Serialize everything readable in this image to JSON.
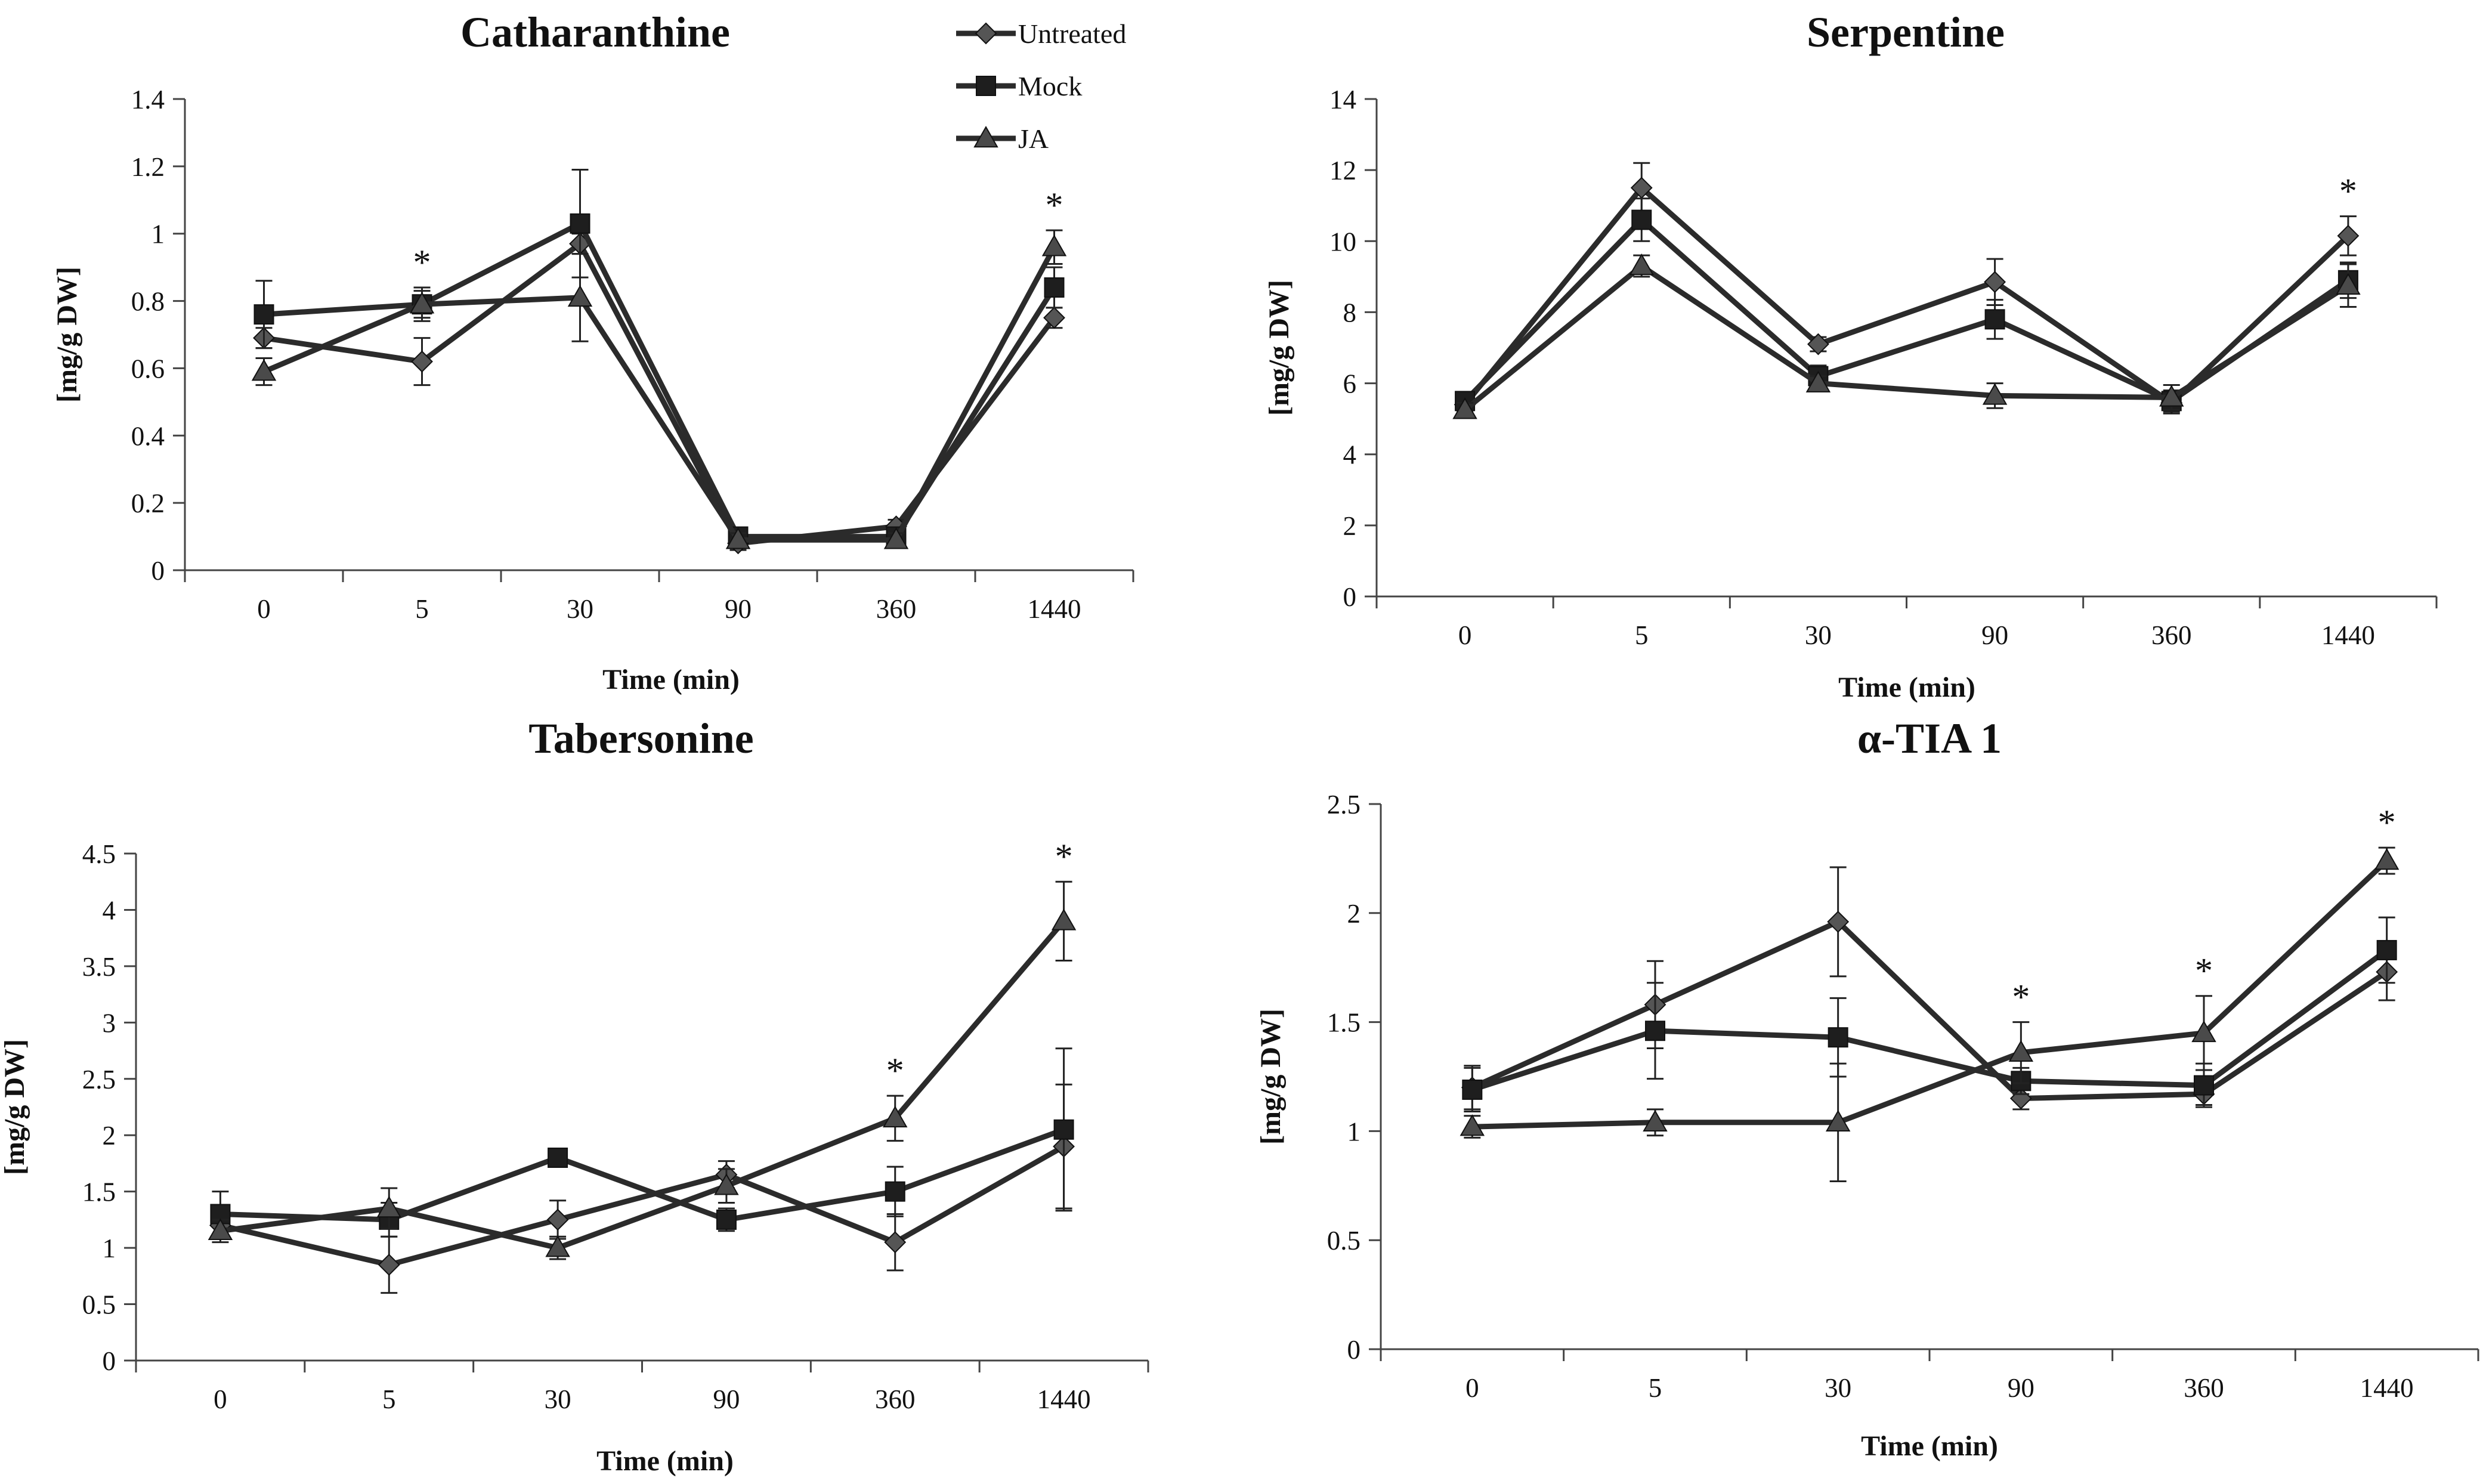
{
  "legend": [
    "Untreated",
    "Mock",
    "JA"
  ],
  "colors": {
    "ink": "#2b2b2b",
    "untreated_marker": "#555555",
    "mock_marker": "#1e1e1e",
    "ja_marker": "#4a4a4a"
  },
  "chart_data": [
    {
      "type": "line",
      "title": "Catharanthine",
      "xlabel": "Time (min)",
      "ylabel": "[mg/g DW]",
      "categories": [
        "0",
        "5",
        "30",
        "90",
        "360",
        "1440"
      ],
      "ylim": [
        0,
        1.4
      ],
      "yticks": [
        "0",
        "0.2",
        "0.4",
        "0.6",
        "0.8",
        "1",
        "1.2",
        "1.4"
      ],
      "series": [
        {
          "name": "Untreated",
          "marker": "diamond",
          "values": [
            0.69,
            0.62,
            0.97,
            0.08,
            0.13,
            0.75
          ],
          "err": [
            0.03,
            0.07,
            0.03,
            0.02,
            0.02,
            0.03
          ]
        },
        {
          "name": "Mock",
          "marker": "square",
          "values": [
            0.76,
            0.79,
            1.03,
            0.1,
            0.1,
            0.84
          ],
          "err": [
            0.1,
            0.04,
            0.16,
            0.02,
            0.02,
            0.06
          ]
        },
        {
          "name": "JA",
          "marker": "triangle",
          "values": [
            0.59,
            0.79,
            0.81,
            0.09,
            0.09,
            0.96
          ],
          "err": [
            0.04,
            0.05,
            0.13,
            0.02,
            0.02,
            0.05
          ]
        }
      ],
      "annotations": [
        {
          "category": "5",
          "text": "*"
        },
        {
          "category": "1440",
          "text": "*"
        }
      ]
    },
    {
      "type": "line",
      "title": "Serpentine",
      "xlabel": "Time (min)",
      "ylabel": "[mg/g DW]",
      "categories": [
        "0",
        "5",
        "30",
        "90",
        "360",
        "1440"
      ],
      "ylim": [
        0,
        14
      ],
      "yticks": [
        "0",
        "2",
        "4",
        "6",
        "8",
        "10",
        "12",
        "14"
      ],
      "series": [
        {
          "name": "Untreated",
          "marker": "diamond",
          "values": [
            5.4,
            11.5,
            7.1,
            8.85,
            5.45,
            10.15
          ],
          "err": [
            0.2,
            0.7,
            0.2,
            0.65,
            0.3,
            0.55
          ]
        },
        {
          "name": "Mock",
          "marker": "square",
          "values": [
            5.5,
            10.6,
            6.2,
            7.8,
            5.5,
            8.9
          ],
          "err": [
            0.2,
            0.6,
            0.3,
            0.55,
            0.3,
            0.5
          ]
        },
        {
          "name": "JA",
          "marker": "triangle",
          "values": [
            5.25,
            9.3,
            6.0,
            5.65,
            5.6,
            8.75
          ],
          "err": [
            0.2,
            0.3,
            0.2,
            0.35,
            0.35,
            0.6
          ]
        }
      ],
      "annotations": [
        {
          "category": "1440",
          "text": "*"
        }
      ]
    },
    {
      "type": "line",
      "title": "Tabersonine",
      "xlabel": "Time (min)",
      "ylabel": "[mg/g DW]",
      "categories": [
        "0",
        "5",
        "30",
        "90",
        "360",
        "1440"
      ],
      "ylim": [
        0,
        4.5
      ],
      "yticks": [
        "0",
        "0.5",
        "1",
        "1.5",
        "2",
        "2.5",
        "3",
        "3.5",
        "4",
        "4.5"
      ],
      "series": [
        {
          "name": "Untreated",
          "marker": "diamond",
          "values": [
            1.2,
            0.85,
            1.25,
            1.65,
            1.05,
            1.9
          ],
          "err": [
            0.08,
            0.25,
            0.17,
            0.12,
            0.25,
            0.55
          ]
        },
        {
          "name": "Mock",
          "marker": "square",
          "values": [
            1.3,
            1.25,
            1.8,
            1.25,
            1.5,
            2.05
          ],
          "err": [
            0.2,
            0.15,
            0.05,
            0.1,
            0.22,
            0.72
          ]
        },
        {
          "name": "JA",
          "marker": "triangle",
          "values": [
            1.15,
            1.35,
            1.0,
            1.55,
            2.15,
            3.9
          ],
          "err": [
            0.1,
            0.18,
            0.1,
            0.15,
            0.2,
            0.35
          ]
        }
      ],
      "annotations": [
        {
          "category": "360",
          "text": "*"
        },
        {
          "category": "1440",
          "text": "*"
        }
      ]
    },
    {
      "type": "line",
      "title": "α-TIA 1",
      "xlabel": "Time (min)",
      "ylabel": "[mg/g DW]",
      "categories": [
        "0",
        "5",
        "30",
        "90",
        "360",
        "1440"
      ],
      "ylim": [
        0,
        2.5
      ],
      "yticks": [
        "0",
        "0.5",
        "1",
        "1.5",
        "2",
        "2.5"
      ],
      "series": [
        {
          "name": "Untreated",
          "marker": "diamond",
          "values": [
            1.2,
            1.58,
            1.96,
            1.15,
            1.17,
            1.73
          ],
          "err": [
            0.1,
            0.2,
            0.25,
            0.05,
            0.05,
            0.13
          ]
        },
        {
          "name": "Mock",
          "marker": "square",
          "values": [
            1.19,
            1.46,
            1.43,
            1.23,
            1.21,
            1.83
          ],
          "err": [
            0.1,
            0.22,
            0.18,
            0.06,
            0.1,
            0.15
          ]
        },
        {
          "name": "JA",
          "marker": "triangle",
          "values": [
            1.02,
            1.04,
            1.04,
            1.36,
            1.45,
            2.24
          ],
          "err": [
            0.05,
            0.06,
            0.27,
            0.14,
            0.17,
            0.06
          ]
        }
      ],
      "annotations": [
        {
          "category": "90",
          "text": "*"
        },
        {
          "category": "360",
          "text": "*"
        },
        {
          "category": "1440",
          "text": "*"
        }
      ]
    }
  ]
}
